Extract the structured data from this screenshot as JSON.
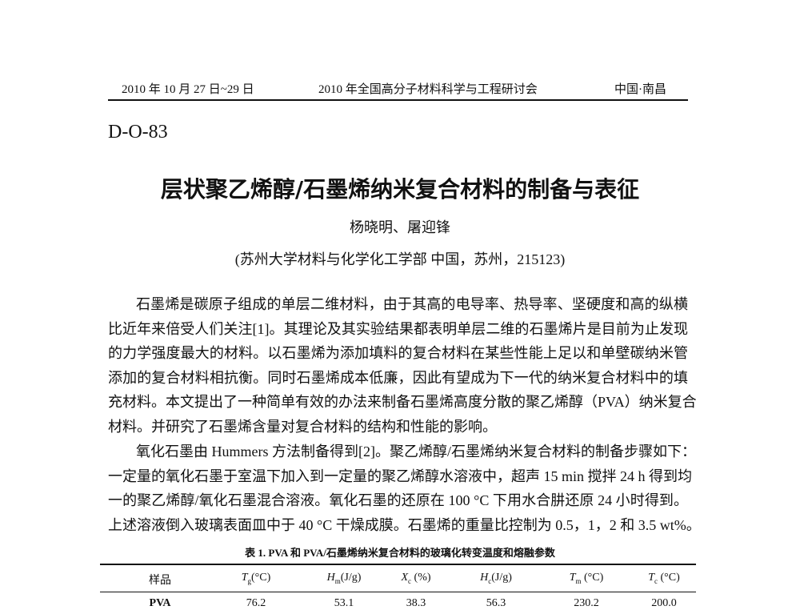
{
  "header": {
    "date": "2010 年 10 月 27 日~29 日",
    "conference": "2010 年全国高分子材料科学与工程研讨会",
    "place": "中国·南昌"
  },
  "code": "D-O-83",
  "title": "层状聚乙烯醇/石墨烯纳米复合材料的制备与表征",
  "authors": "杨晓明、屠迎锋",
  "affiliation": "(苏州大学材料与化学化工学部  中国，苏州，215123)",
  "paragraphs": [
    [
      "石墨烯是碳原子组成的单层二维材料，由于其高的电导率、热导率、坚硬度和高的纵横",
      "比近年来倍受人们关注[1]。其理论及其实验结果都表明单层二维的石墨烯片是目前为止发现",
      "的力学强度最大的材料。以石墨烯为添加填料的复合材料在某些性能上足以和单壁碳纳米管",
      "添加的复合材料相抗衡。同时石墨烯成本低廉，因此有望成为下一代的纳米复合材料中的填",
      "充材料。本文提出了一种简单有效的办法来制备石墨烯高度分散的聚乙烯醇（PVA）纳米复合",
      "材料。并研究了石墨烯含量对复合材料的结构和性能的影响。"
    ],
    [
      "氧化石墨由 Hummers 方法制备得到[2]。聚乙烯醇/石墨烯纳米复合材料的制备步骤如下：",
      "一定量的氧化石墨于室温下加入到一定量的聚乙烯醇水溶液中，超声 15 min 搅拌 24 h 得到均",
      "一的聚乙烯醇/氧化石墨混合溶液。氧化石墨的还原在 100 °C 下用水合肼还原 24 小时得到。",
      "上述溶液倒入玻璃表面皿中于 40 °C 干燥成膜。石墨烯的重量比控制为 0.5，1，2 和 3.5 wt%。"
    ]
  ],
  "table": {
    "caption": "表 1. PVA 和 PVA/石墨烯纳米复合材料的玻璃化转变温度和熔融参数",
    "headers": [
      {
        "text": "样品"
      },
      {
        "symbol": "T",
        "sub": "g",
        "unit": "(°C)"
      },
      {
        "symbol": "H",
        "sub": "m",
        "unit": "(J/g)"
      },
      {
        "symbol": "X",
        "sub": "c",
        "unit": " (%)"
      },
      {
        "symbol": "H",
        "sub": "c",
        "unit": "(J/g)"
      },
      {
        "symbol": "T",
        "sub": "m",
        "unit": " (°C)"
      },
      {
        "symbol": "T",
        "sub": "c",
        "unit": " (°C)"
      }
    ],
    "rows": [
      [
        "PVA",
        "76.2",
        "53.1",
        "38.3",
        "56.3",
        "230.2",
        "200.0"
      ]
    ]
  }
}
